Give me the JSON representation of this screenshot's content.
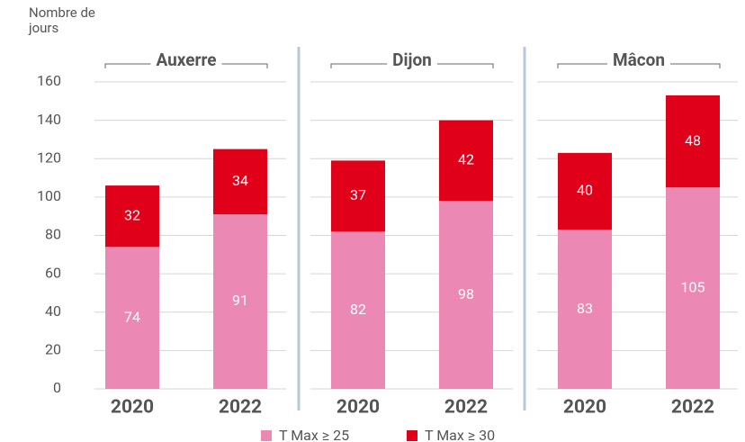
{
  "chart_data": {
    "type": "bar",
    "stacked": true,
    "y_label": "Nombre de jours",
    "groups": [
      "Auxerre",
      "Dijon",
      "Mâcon"
    ],
    "categories": [
      "2020",
      "2022",
      "2020",
      "2022",
      "2020",
      "2022"
    ],
    "series": [
      {
        "name": "T Max ≥ 25",
        "color": "#ec88b4",
        "values": [
          74,
          91,
          82,
          98,
          83,
          105
        ]
      },
      {
        "name": "T Max ≥ 30",
        "color": "#e1001a",
        "values": [
          32,
          34,
          37,
          42,
          40,
          48
        ]
      }
    ],
    "ylim": [
      0,
      160
    ],
    "yticks": [
      0,
      20,
      40,
      60,
      80,
      100,
      120,
      140,
      160
    ],
    "grid": true
  }
}
